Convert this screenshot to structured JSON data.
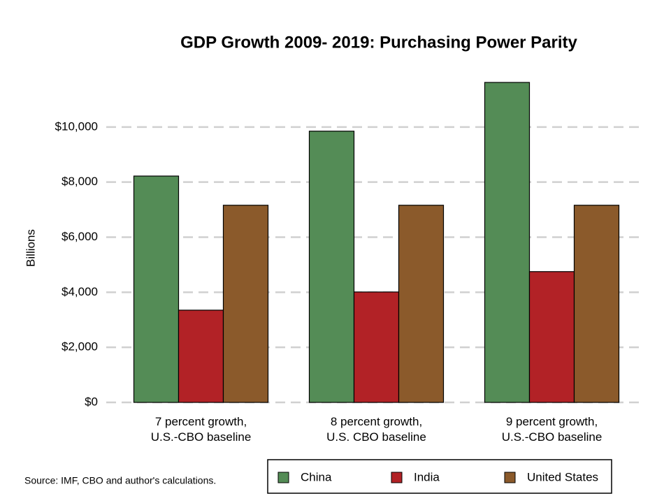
{
  "chart_data": {
    "type": "bar",
    "title": "GDP Growth 2009- 2019:  Purchasing Power Parity",
    "y_label": "Billions",
    "source": "Source: IMF, CBO and author's calculations.",
    "categories": [
      "7 percent growth,\nU.S.-CBO baseline",
      "8 percent growth,\nU.S. CBO baseline",
      "9 percent growth,\nU.S.-CBO baseline"
    ],
    "series": [
      {
        "name": "China",
        "color": "#548c56",
        "values": [
          8220,
          9850,
          11620
        ]
      },
      {
        "name": "India",
        "color": "#b22226",
        "values": [
          3350,
          4010,
          4750
        ]
      },
      {
        "name": "United States",
        "color": "#8b5a2b",
        "values": [
          7160,
          7160,
          7160
        ]
      }
    ],
    "ylim": [
      0,
      12000
    ],
    "yticks": [
      {
        "value": 0,
        "label": "$0"
      },
      {
        "value": 2000,
        "label": "$2,000"
      },
      {
        "value": 4000,
        "label": "$4,000"
      },
      {
        "value": 6000,
        "label": "$6,000"
      },
      {
        "value": 8000,
        "label": "$8,000"
      },
      {
        "value": 10000,
        "label": "$10,000"
      }
    ],
    "grid": true,
    "legend": "bottom"
  }
}
